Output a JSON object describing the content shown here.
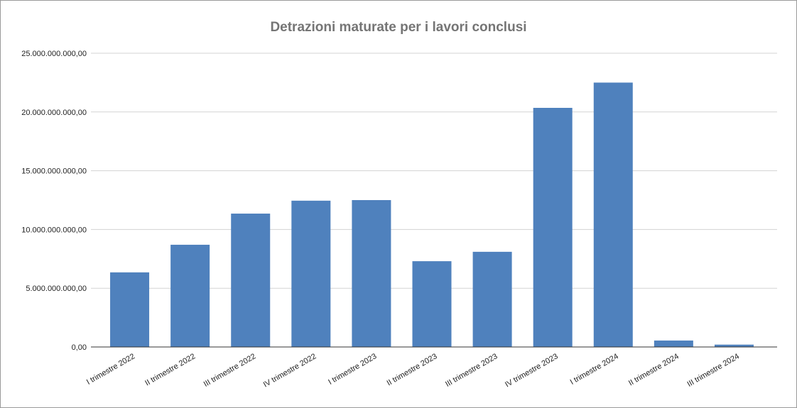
{
  "chart_data": {
    "type": "bar",
    "title": "Detrazioni maturate per i lavori conclusi",
    "xlabel": "",
    "ylabel": "",
    "ylim": [
      0,
      25000000000
    ],
    "yticks": [
      0,
      5000000000,
      10000000000,
      15000000000,
      20000000000,
      25000000000
    ],
    "ytick_labels": [
      "0,00",
      "5.000.000.000,00",
      "10.000.000.000,00",
      "15.000.000.000,00",
      "20.000.000.000,00",
      "25.000.000.000,00"
    ],
    "categories": [
      "I trimestre 2022",
      "II trimestre 2022",
      "III trimestre 2022",
      "IV trimestre 2022",
      "I trimestre 2023",
      "II trimestre 2023",
      "III trimestre 2023",
      "IV trimestre 2023",
      "I trimestre 2024",
      "II trimestre 2024",
      "III trimestre 2024"
    ],
    "values": [
      6350000000,
      8700000000,
      11350000000,
      12450000000,
      12500000000,
      7300000000,
      8100000000,
      20350000000,
      22500000000,
      550000000,
      200000000
    ],
    "bar_color": "#4f81bd",
    "grid": true,
    "legend": "none"
  }
}
